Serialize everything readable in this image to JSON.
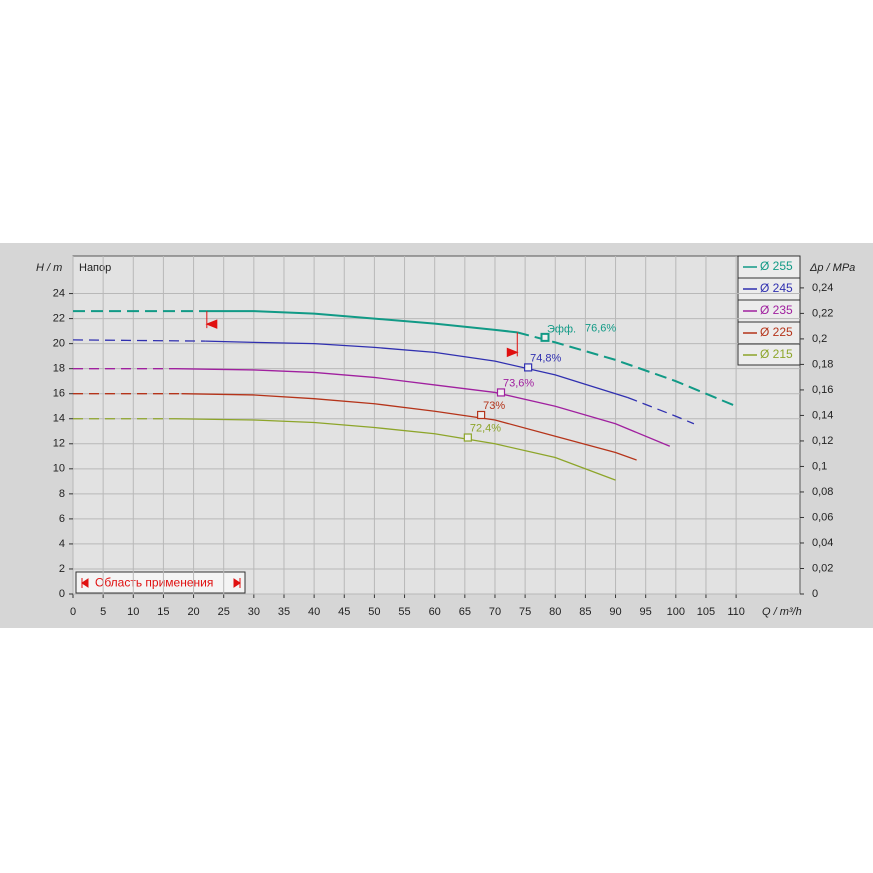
{
  "chart_data": {
    "type": "line",
    "y_label": "H / m",
    "title": "Напор",
    "x_label": "Q / m³/h",
    "y2_label": "Δp / MPa",
    "xlim": [
      0,
      120.6
    ],
    "ylim": [
      0,
      27
    ],
    "y2lim": [
      0,
      0.265
    ],
    "xticks": [
      0,
      5,
      10,
      15,
      20,
      25,
      30,
      35,
      40,
      45,
      50,
      55,
      60,
      65,
      70,
      75,
      80,
      85,
      90,
      95,
      100,
      105,
      110
    ],
    "yticks": [
      0,
      2,
      4,
      6,
      8,
      10,
      12,
      14,
      16,
      18,
      20,
      22,
      24
    ],
    "y2ticks": [
      0,
      {
        "value": 0.02,
        "label": "0,02"
      },
      {
        "value": 0.04,
        "label": "0,04"
      },
      {
        "value": 0.06,
        "label": "0,06"
      },
      {
        "value": 0.08,
        "label": "0,08"
      },
      {
        "value": 0.1,
        "label": "0,1"
      },
      {
        "value": 0.12,
        "label": "0,12"
      },
      {
        "value": 0.14,
        "label": "0,14"
      },
      {
        "value": 0.16,
        "label": "0,16"
      },
      {
        "value": 0.18,
        "label": "0,18"
      },
      {
        "value": 0.2,
        "label": "0,2"
      },
      {
        "value": 0.22,
        "label": "0,22"
      },
      {
        "value": 0.24,
        "label": "0,24"
      }
    ],
    "grid": true,
    "legend": "top-right",
    "efficiency_prefix": "Эфф.",
    "operating_range_label": "Область применения",
    "operating_range": [
      22.2,
      73.7
    ],
    "series": [
      {
        "name": "Ø 255",
        "color": "#119a86",
        "solid_x": [
          22.2,
          73.7
        ],
        "x": [
          0,
          22.2,
          30,
          40,
          50,
          60,
          70,
          73.7,
          80,
          90,
          100,
          110
        ],
        "values": [
          22.6,
          22.6,
          22.6,
          22.4,
          22.0,
          21.6,
          21.1,
          20.9,
          20.1,
          18.7,
          17.0,
          15.0
        ],
        "efficiency": {
          "x": 78.3,
          "y": 20.5,
          "label": "76,6%"
        }
      },
      {
        "name": "Ø 245",
        "color": "#3030b0",
        "solid_x": [
          22,
          92
        ],
        "x": [
          0,
          22,
          30,
          40,
          50,
          60,
          70,
          80,
          92,
          100,
          103
        ],
        "values": [
          20.3,
          20.2,
          20.1,
          20.0,
          19.7,
          19.3,
          18.6,
          17.5,
          15.7,
          14.2,
          13.6
        ],
        "efficiency": {
          "x": 75.5,
          "y": 18.1,
          "label": "74,8%"
        }
      },
      {
        "name": "Ø 235",
        "color": "#a0209f",
        "solid_x": [
          17,
          99
        ],
        "x": [
          0,
          17,
          30,
          40,
          50,
          60,
          70,
          80,
          90,
          99
        ],
        "values": [
          18.0,
          18.0,
          17.9,
          17.7,
          17.3,
          16.7,
          16.1,
          15.0,
          13.6,
          11.8
        ],
        "efficiency": {
          "x": 71.0,
          "y": 16.1,
          "label": "73,6%"
        }
      },
      {
        "name": "Ø 225",
        "color": "#b5341a",
        "solid_x": [
          18,
          93.5
        ],
        "x": [
          0,
          18,
          30,
          40,
          50,
          60,
          70,
          80,
          90,
          93.5
        ],
        "values": [
          16.0,
          16.0,
          15.9,
          15.6,
          15.2,
          14.6,
          13.9,
          12.6,
          11.3,
          10.7
        ],
        "efficiency": {
          "x": 67.7,
          "y": 14.3,
          "label": "73%"
        }
      },
      {
        "name": "Ø 215",
        "color": "#8da52a",
        "solid_x": [
          17,
          90
        ],
        "x": [
          0,
          17,
          30,
          40,
          50,
          60,
          70,
          80,
          90
        ],
        "values": [
          14.0,
          14.0,
          13.9,
          13.7,
          13.3,
          12.8,
          12.0,
          10.9,
          9.1
        ],
        "efficiency": {
          "x": 65.5,
          "y": 12.5,
          "label": "72,4%"
        }
      }
    ]
  }
}
